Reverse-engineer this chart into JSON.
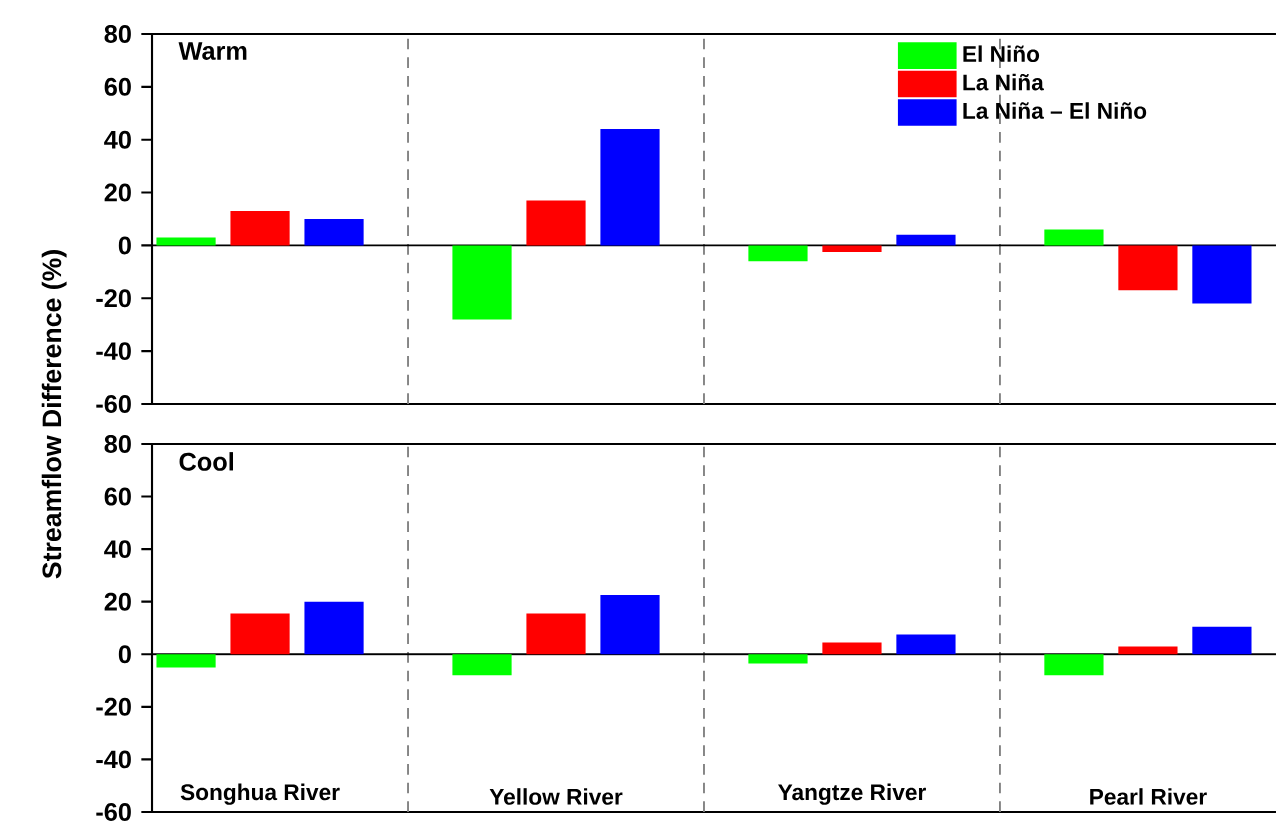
{
  "chart_data": [
    {
      "type": "bar",
      "title": "Warm",
      "ylabel": "Streamflow Difference (%)",
      "categories": [
        null,
        null,
        null,
        null
      ],
      "tick_labels": "y",
      "legend": "top right",
      "ylim": [
        -60,
        80
      ],
      "yticks": [
        -60,
        -40,
        -20,
        0,
        20,
        40,
        60,
        80
      ],
      "series": [
        {
          "name": "El Niño",
          "color": "#00ff00",
          "values": [
            3,
            -28,
            -6,
            6
          ]
        },
        {
          "name": "La Niña",
          "color": "#ff0000",
          "values": [
            13,
            17,
            -2.5,
            -17
          ]
        },
        {
          "name": "La Niña – El Niño",
          "color": "#0000ff",
          "values": [
            10,
            44,
            4,
            -22
          ]
        }
      ]
    },
    {
      "type": "bar",
      "title": "Cool",
      "categories": [
        "Songhua River",
        "Yellow River",
        "Yangtze River",
        "Pearl River"
      ],
      "ylim": [
        -60,
        80
      ],
      "yticks": [
        -60,
        -40,
        -20,
        0,
        20,
        40,
        60,
        80
      ],
      "series": [
        {
          "color": "#00ff00",
          "values": [
            -5,
            -8,
            -3.5,
            -8
          ]
        },
        {
          "color": "#ff0000",
          "values": [
            15.5,
            15.5,
            4.5,
            3
          ]
        },
        {
          "color": "#0000ff",
          "values": [
            20,
            22.5,
            7.5,
            10.5
          ]
        }
      ]
    }
  ]
}
